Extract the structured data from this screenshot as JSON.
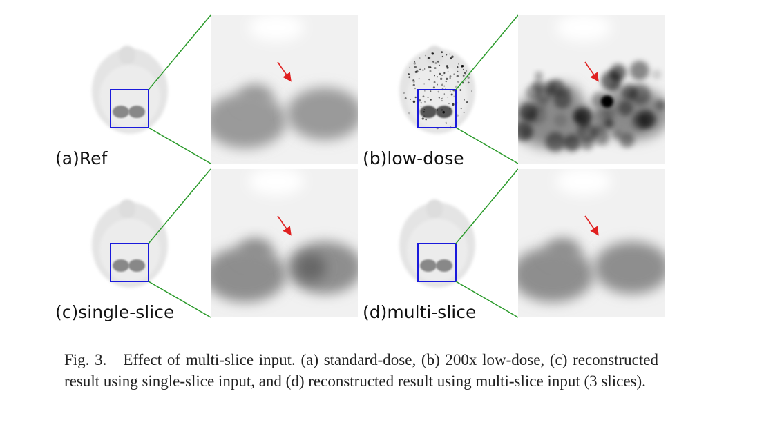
{
  "figure": {
    "panels": [
      {
        "label": "(a)Ref"
      },
      {
        "label": "(b)low-dose"
      },
      {
        "label": "(c)single-slice"
      },
      {
        "label": "(d)multi-slice"
      }
    ],
    "caption": {
      "number": "Fig. 3.",
      "text": "Effect of multi-slice input. (a) standard-dose, (b) 200x low-dose, (c) reconstructed result using single-slice input, and (d) reconstructed result using multi-slice input (3 slices)."
    }
  }
}
